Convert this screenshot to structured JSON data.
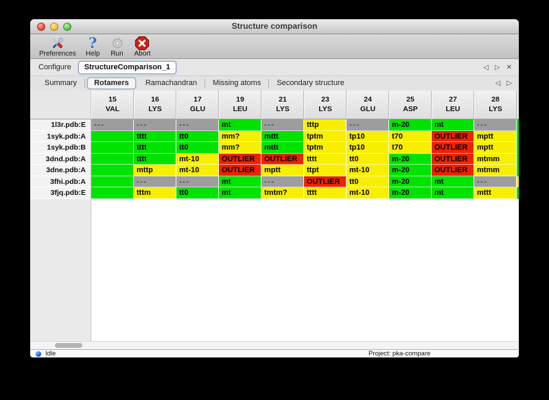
{
  "window": {
    "title": "Structure comparison"
  },
  "toolbar": {
    "items": [
      {
        "label": "Preferences",
        "icon": "tools-icon"
      },
      {
        "label": "Help",
        "icon": "help-icon"
      },
      {
        "label": "Run",
        "icon": "gear-icon"
      },
      {
        "label": "Abort",
        "icon": "abort-icon"
      }
    ]
  },
  "configure": {
    "label": "Configure",
    "workflow_tab": "StructureComparison_1",
    "nav_prev": "◁",
    "nav_next": "▷",
    "nav_close": "✕"
  },
  "tabs": {
    "items": [
      {
        "label": "Summary"
      },
      {
        "label": "Rotamers"
      },
      {
        "label": "Ramachandran"
      },
      {
        "label": "Missing atoms"
      },
      {
        "label": "Secondary structure"
      }
    ],
    "selected": "Rotamers",
    "nav_prev": "◁",
    "nav_next": "▷"
  },
  "help_glyph": "?",
  "table": {
    "columns": [
      {
        "num": "15",
        "res": "VAL"
      },
      {
        "num": "16",
        "res": "LYS"
      },
      {
        "num": "17",
        "res": "GLU"
      },
      {
        "num": "19",
        "res": "LEU"
      },
      {
        "num": "21",
        "res": "LYS"
      },
      {
        "num": "23",
        "res": "LYS"
      },
      {
        "num": "24",
        "res": "GLU"
      },
      {
        "num": "25",
        "res": "ASP"
      },
      {
        "num": "27",
        "res": "LEU"
      },
      {
        "num": "28",
        "res": "LYS"
      }
    ],
    "rows": [
      {
        "label": "1l3r.pdb:E",
        "sliver": "green",
        "cells": [
          [
            "---",
            "missing"
          ],
          [
            "---",
            "missing"
          ],
          [
            "---",
            "missing"
          ],
          [
            "mt",
            "green"
          ],
          [
            "---",
            "missing"
          ],
          [
            "tttp",
            "yellow"
          ],
          [
            "---",
            "missing"
          ],
          [
            "m-20",
            "green"
          ],
          [
            "mt",
            "green"
          ],
          [
            "---",
            "missing"
          ]
        ]
      },
      {
        "label": "1syk.pdb:A",
        "sliver": "green",
        "cells": [
          [
            "",
            "green"
          ],
          [
            "tttt",
            "green"
          ],
          [
            "tt0",
            "green"
          ],
          [
            "mm?",
            "yellow"
          ],
          [
            "mttt",
            "green"
          ],
          [
            "tptm",
            "yellow"
          ],
          [
            "tp10",
            "yellow"
          ],
          [
            "t70",
            "yellow"
          ],
          [
            "OUTLIER",
            "red"
          ],
          [
            "mptt",
            "yellow"
          ]
        ]
      },
      {
        "label": "1syk.pdb:B",
        "sliver": "green",
        "cells": [
          [
            "",
            "green"
          ],
          [
            "tttt",
            "green"
          ],
          [
            "tt0",
            "green"
          ],
          [
            "mm?",
            "yellow"
          ],
          [
            "mttt",
            "green"
          ],
          [
            "tptm",
            "yellow"
          ],
          [
            "tp10",
            "yellow"
          ],
          [
            "t70",
            "yellow"
          ],
          [
            "OUTLIER",
            "red"
          ],
          [
            "mptt",
            "yellow"
          ]
        ]
      },
      {
        "label": "3dnd.pdb:A",
        "sliver": "green",
        "cells": [
          [
            "",
            "green"
          ],
          [
            "tttt",
            "green"
          ],
          [
            "mt-10",
            "yellow"
          ],
          [
            "OUTLIER",
            "red"
          ],
          [
            "OUTLIER",
            "red"
          ],
          [
            "tttt",
            "yellow"
          ],
          [
            "tt0",
            "yellow"
          ],
          [
            "m-20",
            "green"
          ],
          [
            "OUTLIER",
            "red"
          ],
          [
            "mtmm",
            "yellow"
          ]
        ]
      },
      {
        "label": "3dne.pdb:A",
        "sliver": "green",
        "cells": [
          [
            "",
            "green"
          ],
          [
            "mttp",
            "yellow"
          ],
          [
            "mt-10",
            "yellow"
          ],
          [
            "OUTLIER",
            "red"
          ],
          [
            "mptt",
            "yellow"
          ],
          [
            "ttpt",
            "yellow"
          ],
          [
            "mt-10",
            "yellow"
          ],
          [
            "m-20",
            "green"
          ],
          [
            "OUTLIER",
            "red"
          ],
          [
            "mtmm",
            "yellow"
          ]
        ]
      },
      {
        "label": "3fhi.pdb:A",
        "sliver": "yellow",
        "cells": [
          [
            "",
            "green"
          ],
          [
            "---",
            "missing"
          ],
          [
            "---",
            "missing"
          ],
          [
            "mt",
            "green"
          ],
          [
            "---",
            "missing"
          ],
          [
            "OUTLIER",
            "red"
          ],
          [
            "tt0",
            "yellow"
          ],
          [
            "m-20",
            "green"
          ],
          [
            "mt",
            "green"
          ],
          [
            "---",
            "missing"
          ]
        ]
      },
      {
        "label": "3fjq.pdb:E",
        "sliver": "green",
        "cells": [
          [
            "",
            "green"
          ],
          [
            "tttm",
            "yellow"
          ],
          [
            "tt0",
            "green"
          ],
          [
            "mt",
            "green"
          ],
          [
            "tmtm?",
            "yellow"
          ],
          [
            "tttt",
            "yellow"
          ],
          [
            "mt-10",
            "yellow"
          ],
          [
            "m-20",
            "green"
          ],
          [
            "mt",
            "green"
          ],
          [
            "mttt",
            "yellow"
          ]
        ]
      }
    ]
  },
  "status": {
    "state": "Idle",
    "project": "Project: pka-compare"
  },
  "colors": {
    "green": "#00e300",
    "yellow": "#f8ef00",
    "red": "#ee2100",
    "missing": "#9d9d9d"
  }
}
